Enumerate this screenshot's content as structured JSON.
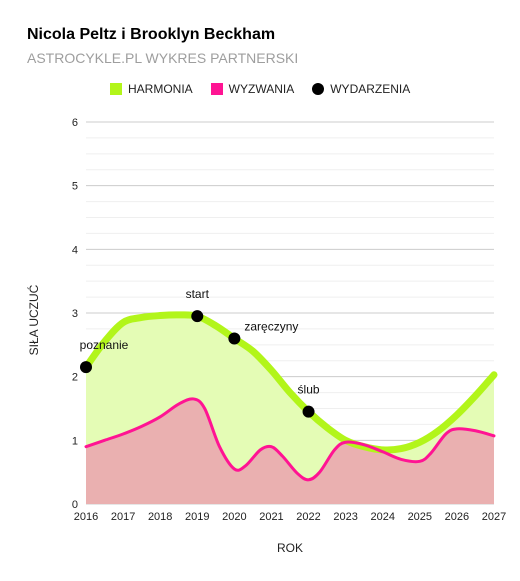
{
  "chart_data": {
    "type": "area",
    "title": "Nicola Peltz i Brooklyn Beckham",
    "subtitle": "ASTROCYKLE.PL WYKRES PARTNERSKI",
    "xlabel": "ROK",
    "ylabel": "SIŁA UCZUĆ",
    "xlim": [
      2016,
      2027
    ],
    "ylim": [
      0,
      6
    ],
    "x_ticks": [
      "2016",
      "2017",
      "2018",
      "2019",
      "2020",
      "2021",
      "2022",
      "2023",
      "2024",
      "2025",
      "2026",
      "2027"
    ],
    "y_ticks": [
      "0",
      "1",
      "2",
      "3",
      "4",
      "5",
      "6"
    ],
    "grid": true,
    "legend_position": "top",
    "series": [
      {
        "name": "HARMONIA",
        "color": "#b2f51a",
        "fill": "#e4fcb5",
        "points": [
          [
            2016,
            2.15
          ],
          [
            2016.5,
            2.55
          ],
          [
            2017,
            2.85
          ],
          [
            2017.5,
            2.93
          ],
          [
            2018,
            2.96
          ],
          [
            2018.5,
            2.97
          ],
          [
            2019,
            2.95
          ],
          [
            2019.5,
            2.8
          ],
          [
            2020,
            2.6
          ],
          [
            2020.5,
            2.4
          ],
          [
            2021,
            2.1
          ],
          [
            2021.5,
            1.75
          ],
          [
            2022,
            1.45
          ],
          [
            2022.5,
            1.2
          ],
          [
            2023,
            1.0
          ],
          [
            2023.5,
            0.9
          ],
          [
            2024,
            0.85
          ],
          [
            2024.5,
            0.87
          ],
          [
            2025,
            0.97
          ],
          [
            2025.5,
            1.15
          ],
          [
            2026,
            1.4
          ],
          [
            2026.5,
            1.7
          ],
          [
            2027,
            2.03
          ]
        ]
      },
      {
        "name": "WYZWANIA",
        "color": "#ff1493",
        "fill": "#eab0b0",
        "points": [
          [
            2016,
            0.9
          ],
          [
            2016.5,
            1.0
          ],
          [
            2017,
            1.1
          ],
          [
            2017.5,
            1.22
          ],
          [
            2018,
            1.37
          ],
          [
            2018.5,
            1.57
          ],
          [
            2018.9,
            1.65
          ],
          [
            2019.2,
            1.5
          ],
          [
            2019.6,
            0.9
          ],
          [
            2020,
            0.55
          ],
          [
            2020.3,
            0.6
          ],
          [
            2020.7,
            0.85
          ],
          [
            2021,
            0.9
          ],
          [
            2021.3,
            0.75
          ],
          [
            2021.7,
            0.48
          ],
          [
            2022,
            0.38
          ],
          [
            2022.3,
            0.5
          ],
          [
            2022.7,
            0.85
          ],
          [
            2023,
            0.97
          ],
          [
            2023.5,
            0.93
          ],
          [
            2024,
            0.82
          ],
          [
            2024.5,
            0.7
          ],
          [
            2025,
            0.67
          ],
          [
            2025.3,
            0.8
          ],
          [
            2025.7,
            1.1
          ],
          [
            2026,
            1.18
          ],
          [
            2026.5,
            1.15
          ],
          [
            2027,
            1.07
          ]
        ]
      }
    ],
    "events": {
      "name": "WYDARZENIA",
      "color": "#000000",
      "points": [
        {
          "x": 2016,
          "y": 2.15,
          "label": "poznanie",
          "label_pos": "above"
        },
        {
          "x": 2019,
          "y": 2.95,
          "label": "start",
          "label_pos": "above"
        },
        {
          "x": 2020,
          "y": 2.6,
          "label": "zaręczyny",
          "label_pos": "above-right"
        },
        {
          "x": 2022,
          "y": 1.45,
          "label": "ślub",
          "label_pos": "above"
        }
      ]
    }
  }
}
